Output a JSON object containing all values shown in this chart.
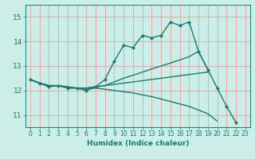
{
  "bg_color": "#cceee8",
  "grid_color": "#e8a0a0",
  "line_color": "#1a7a6e",
  "xlabel": "Humidex (Indice chaleur)",
  "ylim": [
    10.5,
    15.5
  ],
  "xlim": [
    -0.5,
    23.5
  ],
  "yticks": [
    11,
    12,
    13,
    14,
    15
  ],
  "xtick_labels": [
    "0",
    "1",
    "2",
    "3",
    "4",
    "5",
    "6",
    "7",
    "8",
    "9",
    "10",
    "11",
    "12",
    "13",
    "14",
    "15",
    "16",
    "17",
    "18",
    "19",
    "20",
    "21",
    "22",
    "23"
  ],
  "xticks": [
    0,
    1,
    2,
    3,
    4,
    5,
    6,
    7,
    8,
    9,
    10,
    11,
    12,
    13,
    14,
    15,
    16,
    17,
    18,
    19,
    20,
    21,
    22,
    23
  ],
  "series": [
    {
      "x": [
        0,
        1,
        2,
        3,
        4,
        5,
        6,
        7,
        8,
        9,
        10,
        11,
        12,
        13,
        14,
        15,
        16,
        17,
        18,
        19,
        20,
        21,
        22
      ],
      "y": [
        12.45,
        12.3,
        12.15,
        12.2,
        12.1,
        12.1,
        12.0,
        12.15,
        12.45,
        13.2,
        13.85,
        13.75,
        14.25,
        14.15,
        14.25,
        14.8,
        14.65,
        14.8,
        13.6,
        12.85,
        12.1,
        11.35,
        10.7
      ],
      "has_markers": true,
      "lw": 1.0
    },
    {
      "x": [
        0,
        1,
        2,
        3,
        4,
        5,
        6,
        7,
        8,
        9,
        10,
        11,
        12,
        13,
        14,
        15,
        16,
        17,
        18,
        19,
        20,
        21,
        22
      ],
      "y": [
        12.45,
        12.3,
        12.2,
        12.2,
        12.15,
        12.1,
        12.1,
        12.15,
        12.2,
        12.35,
        12.5,
        12.62,
        12.75,
        12.88,
        13.0,
        13.12,
        13.25,
        13.38,
        13.6,
        12.85,
        null,
        null,
        null
      ],
      "has_markers": false,
      "lw": 1.0
    },
    {
      "x": [
        0,
        1,
        2,
        3,
        4,
        5,
        6,
        7,
        8,
        9,
        10,
        11,
        12,
        13,
        14,
        15,
        16,
        17,
        18,
        19,
        20,
        21,
        22
      ],
      "y": [
        12.45,
        12.3,
        12.2,
        12.2,
        12.15,
        12.1,
        12.1,
        12.15,
        12.2,
        12.25,
        12.3,
        12.35,
        12.4,
        12.45,
        12.5,
        12.55,
        12.6,
        12.65,
        12.7,
        12.75,
        null,
        null,
        null
      ],
      "has_markers": false,
      "lw": 1.0
    },
    {
      "x": [
        0,
        1,
        2,
        3,
        4,
        5,
        6,
        7,
        8,
        9,
        10,
        11,
        12,
        13,
        14,
        15,
        16,
        17,
        18,
        19,
        20,
        21,
        22
      ],
      "y": [
        12.45,
        12.3,
        12.2,
        12.2,
        12.1,
        12.1,
        12.05,
        12.1,
        12.05,
        12.0,
        11.95,
        11.9,
        11.82,
        11.75,
        11.65,
        11.55,
        11.45,
        11.35,
        11.2,
        11.05,
        10.75,
        null,
        null
      ],
      "has_markers": false,
      "lw": 1.0
    }
  ]
}
